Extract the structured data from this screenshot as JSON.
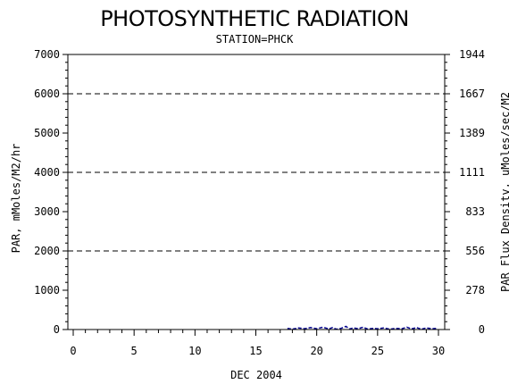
{
  "chart_data": {
    "type": "line",
    "title": "PHOTOSYNTHETIC RADIATION",
    "subtitle": "STATION=PHCK",
    "xlabel": "DEC 2004",
    "ylabel": "PAR, mMoles/M2/hr",
    "ylabel_right": "PAR Flux Densitv, uMoles/sec/M2",
    "xlim": [
      0,
      30
    ],
    "ylim": [
      0,
      7000
    ],
    "x_ticks": [
      "0",
      "5",
      "10",
      "15",
      "20",
      "25",
      "30"
    ],
    "y_ticks": [
      "0",
      "1000",
      "2000",
      "3000",
      "4000",
      "5000",
      "6000",
      "7000"
    ],
    "y2_ticks": [
      "0",
      "278",
      "556",
      "833",
      "1111",
      "1389",
      "1667",
      "1944"
    ],
    "gridlines_y": [
      2000,
      4000,
      6000
    ],
    "series": [
      {
        "color": "#00008b",
        "x": [
          17.6,
          18.0,
          18.5,
          19.0,
          19.5,
          20.0,
          20.5,
          21.0,
          21.3,
          21.6,
          22.0,
          22.4,
          22.7,
          23.0,
          23.4,
          23.8,
          24.2,
          24.6,
          25.0,
          25.5,
          26.0,
          26.5,
          27.0,
          27.4,
          27.8,
          28.2,
          28.6,
          29.0,
          29.5,
          29.8
        ],
        "y": [
          30,
          10,
          40,
          20,
          50,
          20,
          60,
          15,
          50,
          10,
          30,
          80,
          15,
          40,
          20,
          60,
          10,
          30,
          20,
          40,
          10,
          30,
          20,
          60,
          15,
          50,
          10,
          40,
          20,
          30
        ]
      }
    ]
  }
}
